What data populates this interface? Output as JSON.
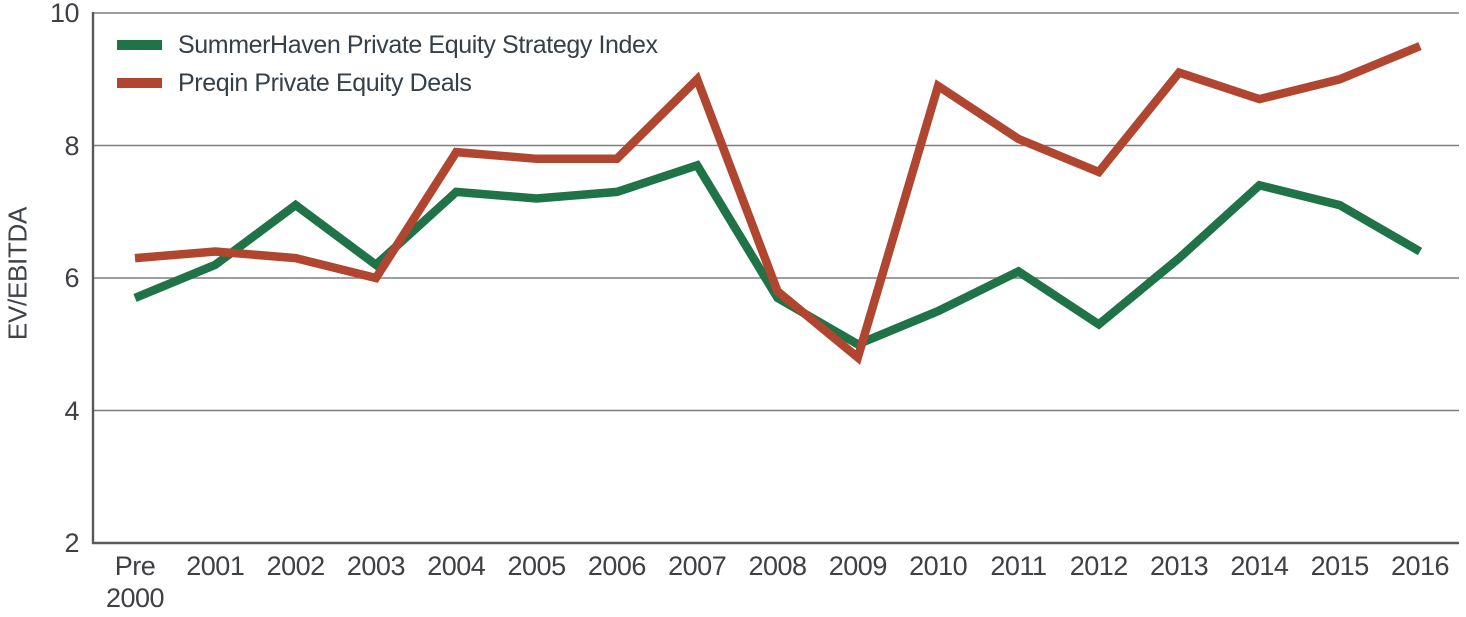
{
  "chart_data": {
    "type": "line",
    "title": "",
    "xlabel": "",
    "ylabel": "EV/EBITDA",
    "ylim": [
      2,
      10
    ],
    "yticks": [
      2,
      4,
      6,
      8,
      10
    ],
    "grid": "horizontal gridlines at 4, 6, 8, 10; left and bottom axis lines; no right border",
    "legend_position": "top-left inside plot",
    "categories": [
      "Pre 2000",
      "2001",
      "2002",
      "2003",
      "2004",
      "2005",
      "2006",
      "2007",
      "2008",
      "2009",
      "2010",
      "2011",
      "2012",
      "2013",
      "2014",
      "2015",
      "2016"
    ],
    "series": [
      {
        "name": "SummerHaven Private Equity Strategy Index",
        "color": "#1f7346",
        "values": [
          5.7,
          6.2,
          7.1,
          6.2,
          7.3,
          7.2,
          7.3,
          7.7,
          5.7,
          5.0,
          5.5,
          6.1,
          5.3,
          6.3,
          7.4,
          7.1,
          6.4
        ]
      },
      {
        "name": "Preqin Private Equity Deals",
        "color": "#b0462f",
        "values": [
          6.3,
          6.4,
          6.3,
          6.0,
          7.9,
          7.8,
          7.8,
          9.0,
          5.8,
          4.8,
          8.9,
          8.1,
          7.6,
          9.1,
          8.7,
          9.0,
          9.5
        ]
      }
    ]
  },
  "colors": {
    "background": "#ffffff",
    "text": "#3f4044",
    "legend_text": "#343f49",
    "gridline": "#7d7e80",
    "axis": "#58595b"
  }
}
